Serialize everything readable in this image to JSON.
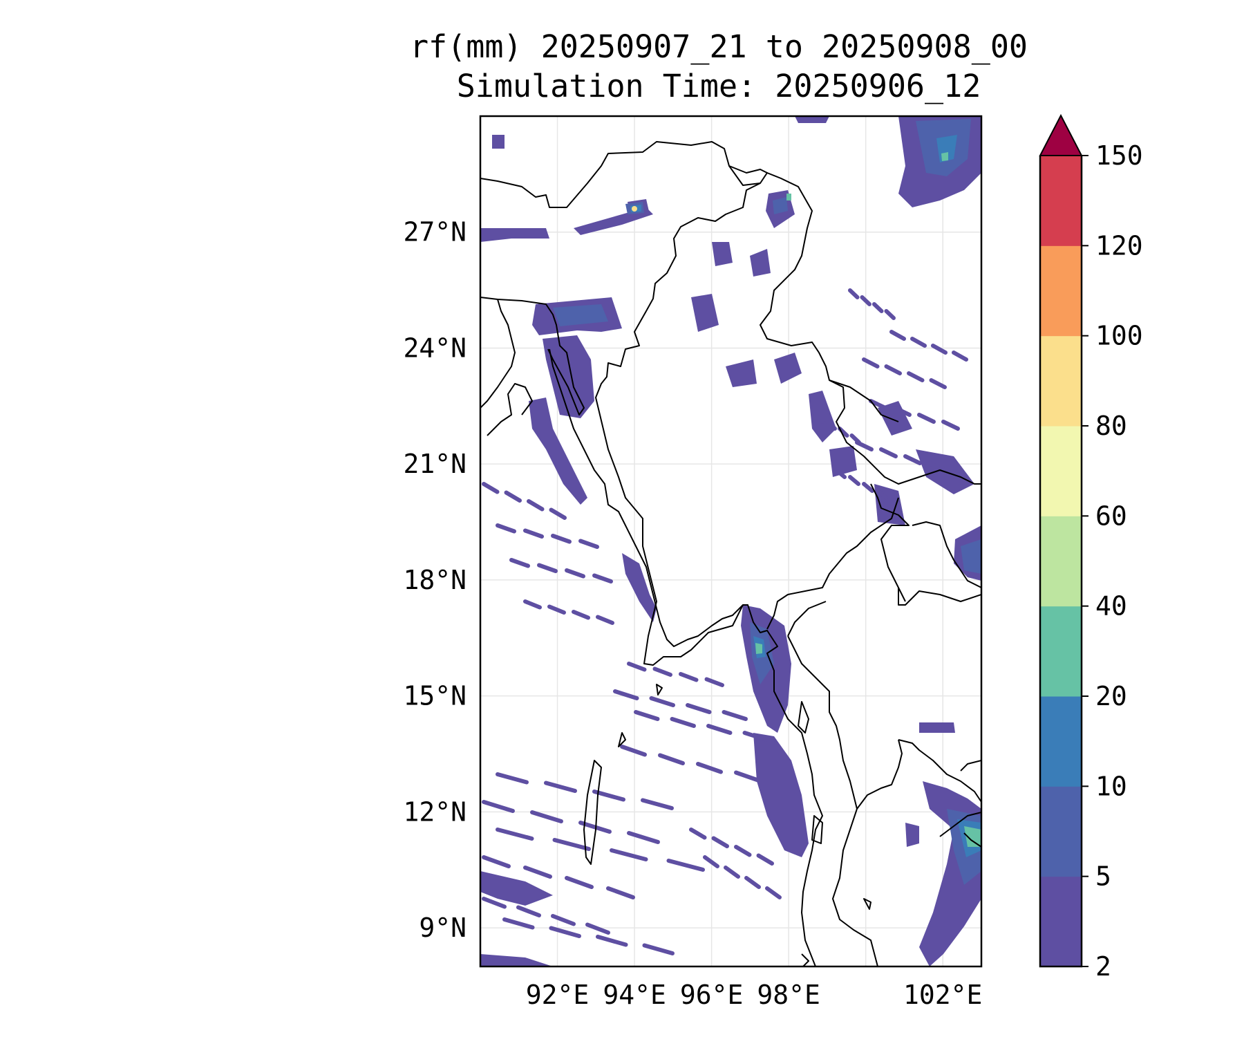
{
  "title": {
    "line1": "rf(mm) 20250907_21 to 20250908_00",
    "line2": "Simulation Time: 20250906_12"
  },
  "map": {
    "lon_range": [
      90.0,
      103.0
    ],
    "lat_range": [
      8.0,
      30.0
    ],
    "lat_labels": [
      {
        "value": 27,
        "text": "27°N"
      },
      {
        "value": 24,
        "text": "24°N"
      },
      {
        "value": 21,
        "text": "21°N"
      },
      {
        "value": 18,
        "text": "18°N"
      },
      {
        "value": 15,
        "text": "15°N"
      },
      {
        "value": 12,
        "text": "12°N"
      },
      {
        "value": 9,
        "text": "9°N"
      }
    ],
    "lon_labels": [
      {
        "value": 92,
        "text": "92°E"
      },
      {
        "value": 94,
        "text": "94°E"
      },
      {
        "value": 96,
        "text": "96°E"
      },
      {
        "value": 98,
        "text": "98°E"
      },
      {
        "value": 102,
        "text": "102°E"
      }
    ],
    "gridlines": true,
    "grid_lons": [
      92,
      94,
      96,
      98,
      100,
      102
    ],
    "grid_lats": [
      9,
      12,
      15,
      18,
      21,
      24,
      27
    ]
  },
  "colorbar": {
    "levels": [
      "2",
      "5",
      "10",
      "20",
      "40",
      "60",
      "80",
      "100",
      "120",
      "150"
    ],
    "colors": [
      "#5e4fa2",
      "#4e62ab",
      "#3a7db8",
      "#66c2a5",
      "#bde5a0",
      "#f2f7b0",
      "#fbdf8c",
      "#f99c5a",
      "#d53e4f"
    ],
    "extend_color": "#9e0142",
    "extend": "max"
  }
}
